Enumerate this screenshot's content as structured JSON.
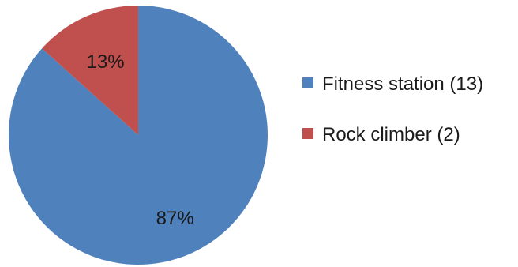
{
  "chart_data": {
    "type": "pie",
    "slices": [
      {
        "label": "Fitness station (13)",
        "value": 13,
        "percent_label": "87%",
        "color": "#4F81BD"
      },
      {
        "label": "Rock climber (2)",
        "value": 2,
        "percent_label": "13%",
        "color": "#C0504D"
      }
    ],
    "start_angle_deg": 0,
    "direction": "clockwise",
    "legend_position": "right",
    "title": ""
  }
}
